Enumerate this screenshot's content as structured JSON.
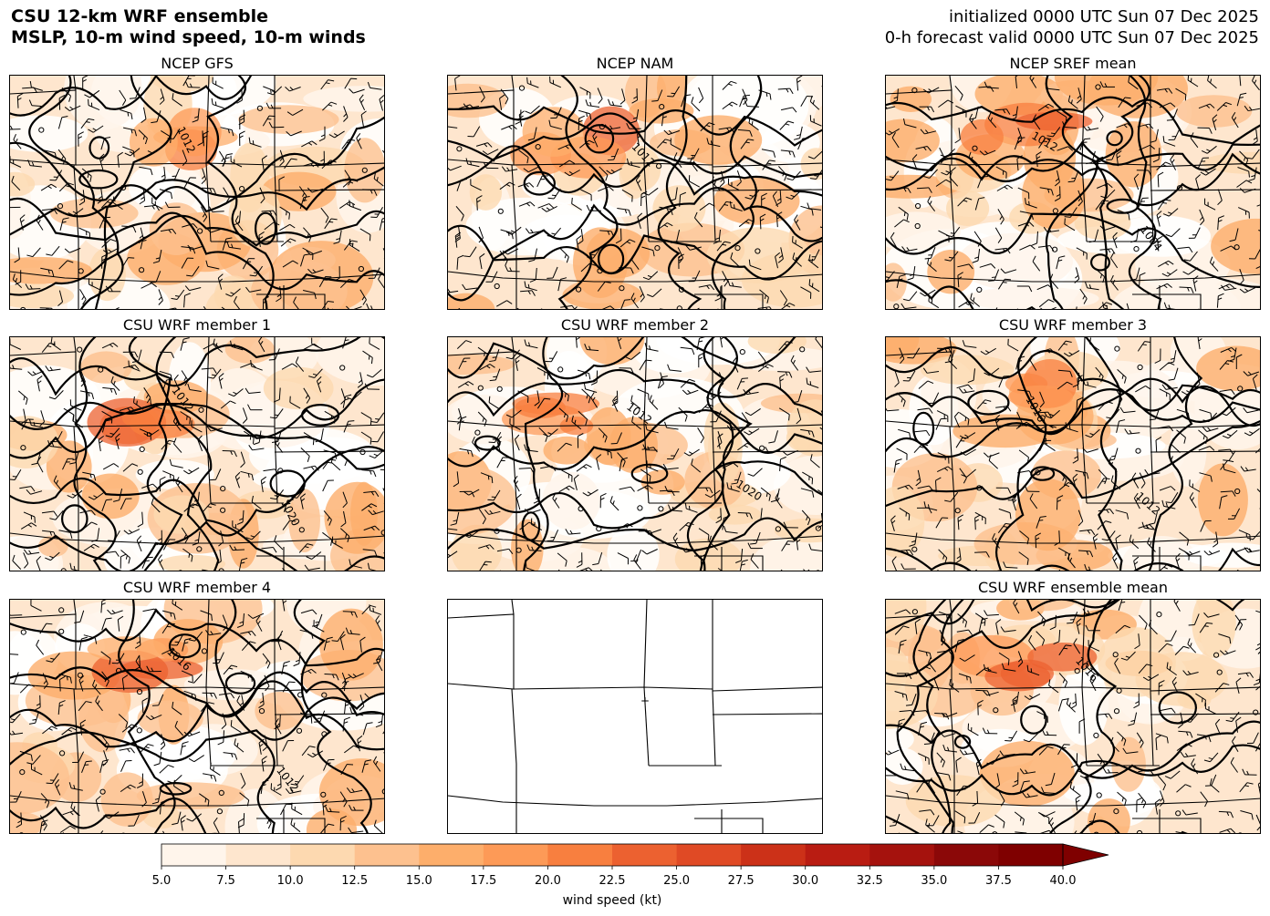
{
  "header": {
    "title_line1": "CSU 12-km WRF ensemble",
    "title_line2": "MSLP, 10-m wind speed, 10-m winds",
    "init_line": "initialized 0000 UTC Sun 07 Dec 2025",
    "valid_line": "0-h forecast valid 0000 UTC Sun 07 Dec 2025"
  },
  "panels": [
    {
      "title": "NCEP GFS",
      "isobar_labels": [
        "1012"
      ]
    },
    {
      "title": "NCEP NAM",
      "isobar_labels": [
        "1012"
      ]
    },
    {
      "title": "NCEP SREF mean",
      "isobar_labels": [
        "1012",
        "1004"
      ]
    },
    {
      "title": "CSU WRF member 1",
      "isobar_labels": [
        "1012",
        "1020"
      ]
    },
    {
      "title": "CSU WRF member 2",
      "isobar_labels": [
        "1012",
        "1020"
      ]
    },
    {
      "title": "CSU WRF member 3",
      "isobar_labels": [
        "1016",
        "1012"
      ]
    },
    {
      "title": "CSU WRF member 4",
      "isobar_labels": [
        "1016",
        "1012"
      ]
    },
    {
      "title": "",
      "isobar_labels": []
    },
    {
      "title": "CSU WRF ensemble mean",
      "isobar_labels": [
        "1016"
      ]
    }
  ],
  "chart_data": {
    "type": "heatmap",
    "colorbar": {
      "label": "wind speed (kt)",
      "ticks": [
        "5.0",
        "7.5",
        "10.0",
        "12.5",
        "15.0",
        "17.5",
        "20.0",
        "22.5",
        "25.0",
        "27.5",
        "30.0",
        "32.5",
        "35.0",
        "37.5",
        "40.0"
      ],
      "levels": [
        5.0,
        7.5,
        10.0,
        12.5,
        15.0,
        17.5,
        20.0,
        22.5,
        25.0,
        27.5,
        30.0,
        32.5,
        35.0,
        37.5,
        40.0
      ],
      "colors": [
        "#fff5eb",
        "#fee6ce",
        "#fdd9b0",
        "#fdc18f",
        "#fdae6b",
        "#fd9a57",
        "#f87f3f",
        "#ec6130",
        "#e04a25",
        "#cc3118",
        "#b91c12",
        "#a5120d",
        "#8b0808",
        "#7f0000"
      ],
      "extend": "max"
    }
  }
}
